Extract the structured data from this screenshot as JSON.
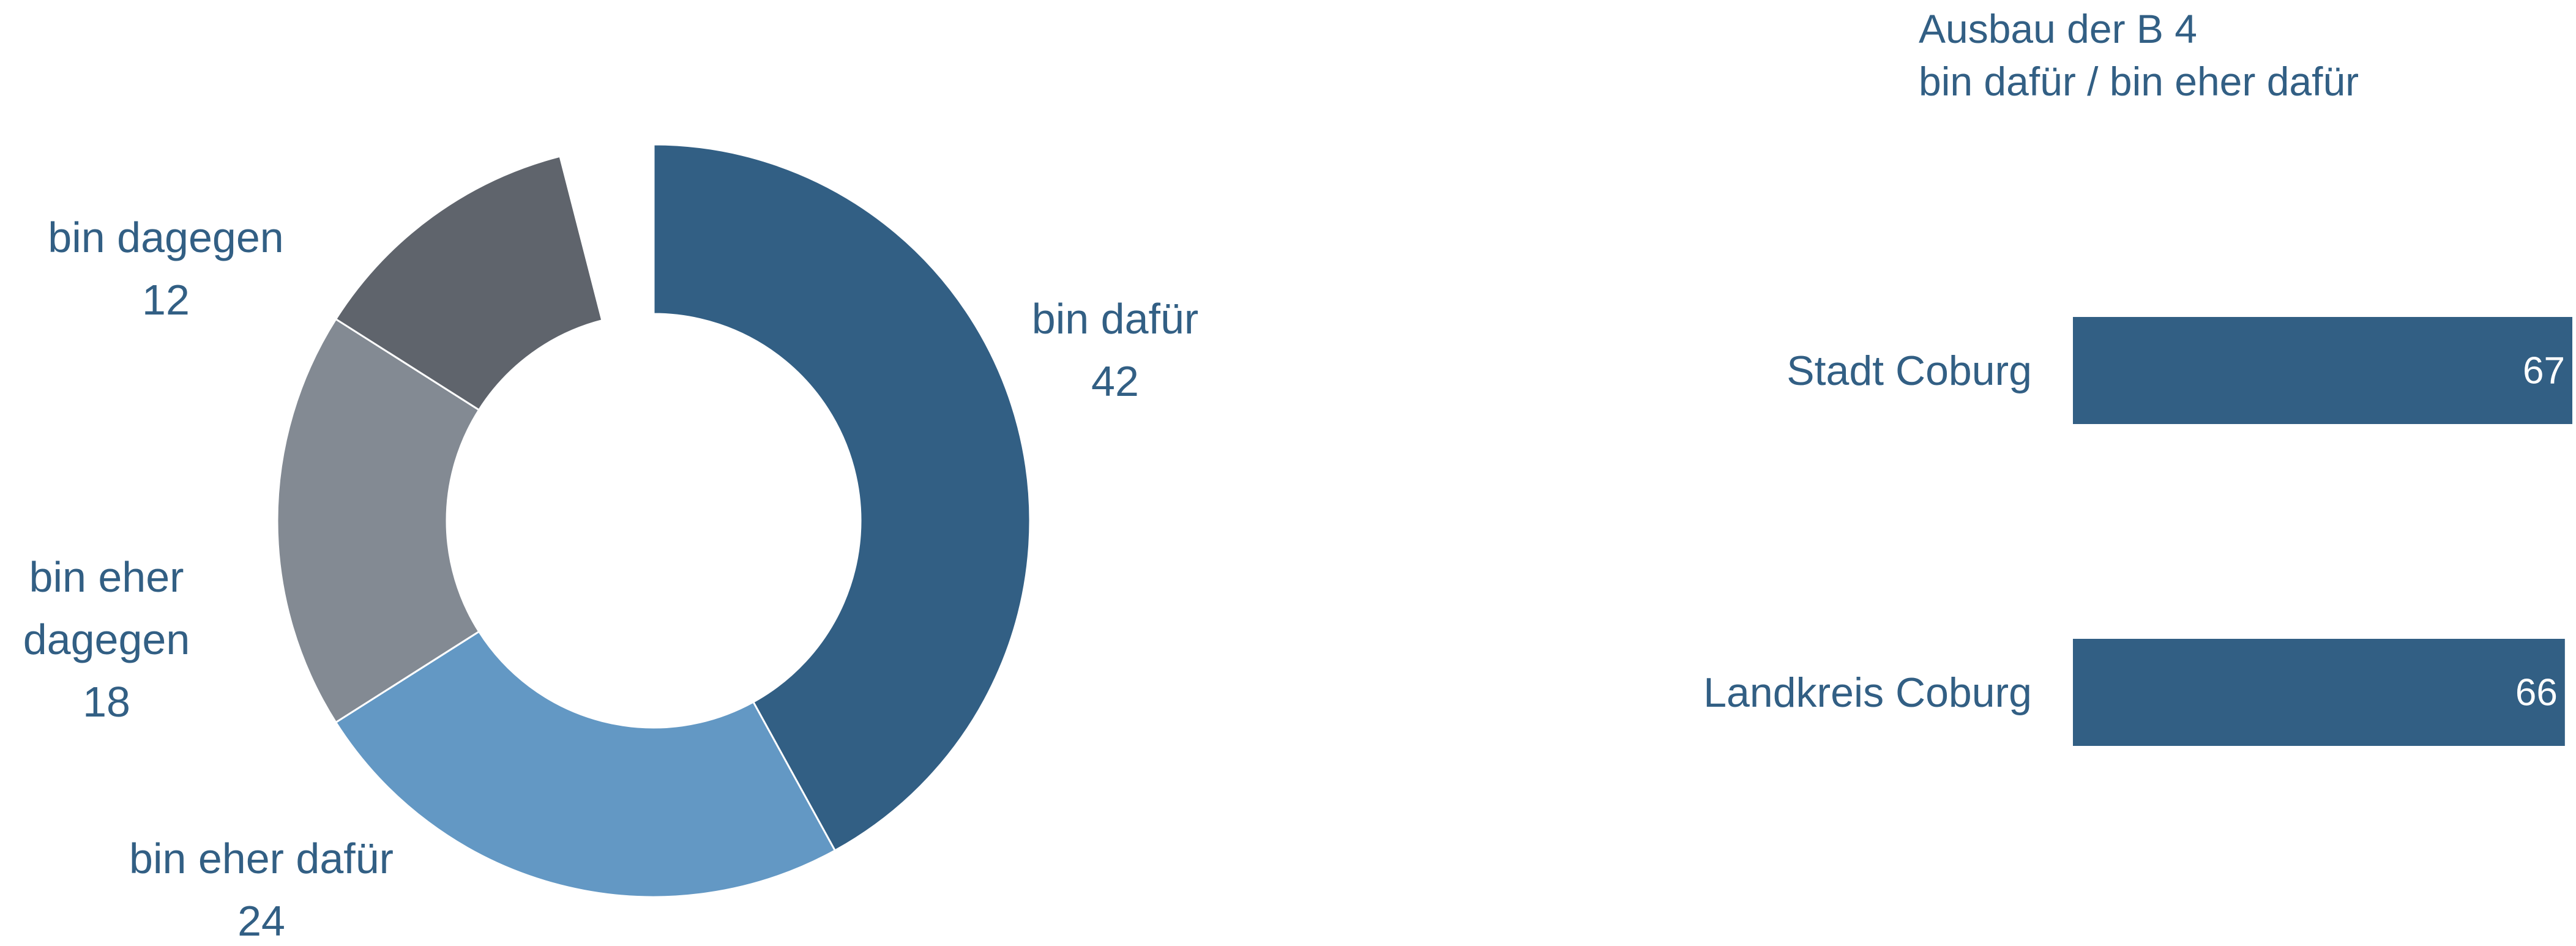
{
  "chart_data": [
    {
      "type": "donut",
      "categories": [
        "bin dafür",
        "bin eher dafür",
        "bin eher dagegen",
        "bin dagegen",
        null
      ],
      "values": [
        42,
        24,
        18,
        12,
        4
      ],
      "colors": [
        "#325f84",
        "#6398c4",
        "#838a93",
        "#5f646c",
        "#ffffff"
      ]
    },
    {
      "type": "hbar",
      "title": "Ausbau der B 4",
      "subtitle": "bin dafür / bin eher dafür",
      "categories": [
        "Stadt Coburg",
        "Landkreis Coburg"
      ],
      "values": [
        67,
        66
      ],
      "color": "#325f84",
      "xlim": [
        0,
        67
      ]
    }
  ]
}
